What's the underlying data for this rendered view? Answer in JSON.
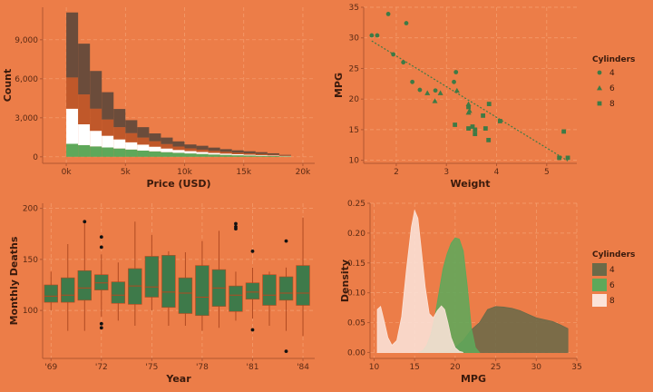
{
  "colors": {
    "background": "#ec7d48",
    "dark_brown": "#6b4c3b",
    "rust": "#c0582a",
    "white": "#ffffff",
    "green": "#5ea85a",
    "dark_green": "#3e7a45",
    "box_green": "#3e7a4a",
    "pink": "#fbe3d8",
    "olive": "#6b6a48"
  },
  "chart_data": [
    {
      "type": "bar",
      "subtype": "stacked-histogram",
      "xlabel": "Price (USD)",
      "ylabel": "Count",
      "x_ticks": [
        "0k",
        "5k",
        "10k",
        "15k",
        "20k"
      ],
      "x_tick_values": [
        0,
        5000,
        10000,
        15000,
        20000
      ],
      "y_ticks": [
        "0",
        "3,000",
        "6,000",
        "9,000"
      ],
      "y_tick_values": [
        0,
        3000,
        6000,
        9000
      ],
      "xlim": [
        -2000,
        21000
      ],
      "ylim": [
        -500,
        11500
      ],
      "bin_starts": [
        0,
        1000,
        2000,
        3000,
        4000,
        5000,
        6000,
        7000,
        8000,
        9000,
        10000,
        11000,
        12000,
        13000,
        14000,
        15000,
        16000,
        17000,
        18000
      ],
      "bin_width": 1000,
      "series": [
        {
          "color": "#5ea85a",
          "values": [
            1000,
            900,
            800,
            720,
            640,
            560,
            480,
            420,
            360,
            310,
            260,
            220,
            180,
            150,
            120,
            100,
            80,
            60,
            40
          ]
        },
        {
          "color": "#ffffff",
          "values": [
            2700,
            1600,
            1200,
            900,
            700,
            560,
            460,
            360,
            280,
            220,
            180,
            150,
            120,
            100,
            80,
            60,
            50,
            40,
            30
          ]
        },
        {
          "color": "#c0582a",
          "values": [
            2400,
            2300,
            1700,
            1250,
            940,
            700,
            540,
            420,
            340,
            260,
            210,
            180,
            160,
            140,
            120,
            110,
            90,
            60,
            30
          ]
        },
        {
          "color": "#6b4c3b",
          "values": [
            5000,
            3900,
            2900,
            2100,
            1400,
            1000,
            800,
            600,
            500,
            400,
            300,
            300,
            250,
            200,
            180,
            160,
            140,
            110,
            50
          ]
        }
      ]
    },
    {
      "type": "scatter",
      "xlabel": "Weight",
      "ylabel": "MPG",
      "x_ticks": [
        "2",
        "3",
        "4",
        "5"
      ],
      "x_tick_values": [
        2,
        3,
        4,
        5
      ],
      "y_ticks": [
        "10",
        "15",
        "20",
        "25",
        "30",
        "35"
      ],
      "y_tick_values": [
        10,
        15,
        20,
        25,
        30,
        35
      ],
      "xlim": [
        1.35,
        5.6
      ],
      "ylim": [
        9.5,
        35
      ],
      "legend_title": "Cylinders",
      "legend_position": "right",
      "series": [
        {
          "name": "4",
          "shape": "circle",
          "points": [
            [
              1.51,
              30.4
            ],
            [
              1.62,
              30.4
            ],
            [
              1.84,
              33.9
            ],
            [
              1.94,
              27.3
            ],
            [
              2.14,
              26.0
            ],
            [
              2.2,
              32.4
            ],
            [
              2.32,
              22.8
            ],
            [
              2.47,
              21.5
            ],
            [
              2.78,
              21.4
            ],
            [
              3.19,
              24.4
            ],
            [
              3.15,
              22.8
            ]
          ]
        },
        {
          "name": "6",
          "shape": "triangle",
          "points": [
            [
              2.62,
              21.0
            ],
            [
              2.88,
              21.0
            ],
            [
              2.77,
              19.7
            ],
            [
              3.21,
              21.4
            ],
            [
              3.46,
              18.1
            ],
            [
              3.44,
              19.2
            ],
            [
              3.44,
              17.8
            ]
          ]
        },
        {
          "name": "8",
          "shape": "square",
          "points": [
            [
              3.44,
              18.7
            ],
            [
              3.57,
              14.3
            ],
            [
              4.07,
              16.4
            ],
            [
              3.73,
              17.3
            ],
            [
              3.78,
              15.2
            ],
            [
              5.25,
              10.4
            ],
            [
              5.42,
              10.4
            ],
            [
              5.34,
              14.7
            ],
            [
              3.52,
              15.5
            ],
            [
              3.44,
              15.2
            ],
            [
              3.84,
              13.3
            ],
            [
              3.85,
              19.2
            ],
            [
              3.17,
              15.8
            ],
            [
              3.57,
              15.0
            ]
          ]
        }
      ],
      "trend": {
        "x": [
          1.51,
          5.42
        ],
        "y": [
          29.5,
          9.9
        ]
      }
    },
    {
      "type": "boxplot",
      "xlabel": "Year",
      "ylabel": "Monthly Deaths",
      "x_ticks": [
        "'69",
        "'72",
        "'75",
        "'78",
        "'81",
        "'84"
      ],
      "x_tick_values": [
        1969,
        1972,
        1975,
        1978,
        1981,
        1984
      ],
      "y_ticks": [
        "100",
        "150",
        "200"
      ],
      "y_tick_values": [
        100,
        150,
        200
      ],
      "xlim": [
        1968.5,
        1984.7
      ],
      "ylim": [
        53,
        205
      ],
      "boxes": [
        {
          "x": 1969,
          "q1": 108,
          "median": 114,
          "q3": 125,
          "low": 100,
          "high": 138
        },
        {
          "x": 1970,
          "q1": 108,
          "median": 115,
          "q3": 132,
          "low": 80,
          "high": 165
        },
        {
          "x": 1971,
          "q1": 110,
          "median": 122,
          "q3": 139,
          "low": 80,
          "high": 186
        },
        {
          "x": 1972,
          "q1": 120,
          "median": 127,
          "q3": 135,
          "low": 94,
          "high": 155
        },
        {
          "x": 1973,
          "q1": 107,
          "median": 115,
          "q3": 128,
          "low": 90,
          "high": 147
        },
        {
          "x": 1974,
          "q1": 106,
          "median": 124,
          "q3": 141,
          "low": 85,
          "high": 187
        },
        {
          "x": 1975,
          "q1": 113,
          "median": 123,
          "q3": 153,
          "low": 100,
          "high": 174
        },
        {
          "x": 1976,
          "q1": 103,
          "median": 118,
          "q3": 154,
          "low": 85,
          "high": 158
        },
        {
          "x": 1977,
          "q1": 97,
          "median": 117,
          "q3": 132,
          "low": 85,
          "high": 157
        },
        {
          "x": 1978,
          "q1": 95,
          "median": 113,
          "q3": 144,
          "low": 80,
          "high": 168
        },
        {
          "x": 1979,
          "q1": 104,
          "median": 122,
          "q3": 140,
          "low": 83,
          "high": 178
        },
        {
          "x": 1980,
          "q1": 99,
          "median": 115,
          "q3": 124,
          "low": 90,
          "high": 138
        },
        {
          "x": 1981,
          "q1": 111,
          "median": 118,
          "q3": 127,
          "low": 92,
          "high": 142
        },
        {
          "x": 1982,
          "q1": 105,
          "median": 115,
          "q3": 135,
          "low": 85,
          "high": 138
        },
        {
          "x": 1983,
          "q1": 110,
          "median": 117,
          "q3": 133,
          "low": 80,
          "high": 142
        },
        {
          "x": 1984,
          "q1": 105,
          "median": 117,
          "q3": 144,
          "low": 75,
          "high": 191
        }
      ],
      "outliers": [
        [
          1971,
          187
        ],
        [
          1972,
          172
        ],
        [
          1972,
          162
        ],
        [
          1972,
          87
        ],
        [
          1972,
          83
        ],
        [
          1980,
          185
        ],
        [
          1980,
          182
        ],
        [
          1980,
          180
        ],
        [
          1981,
          158
        ],
        [
          1981,
          81
        ],
        [
          1983,
          168
        ],
        [
          1983,
          60
        ]
      ]
    },
    {
      "type": "area",
      "subtype": "density",
      "xlabel": "MPG",
      "ylabel": "Density",
      "x_ticks": [
        "10",
        "15",
        "20",
        "25",
        "30",
        "35"
      ],
      "x_tick_values": [
        10,
        15,
        20,
        25,
        30,
        35
      ],
      "y_ticks": [
        "0.00",
        "0.05",
        "0.10",
        "0.15",
        "0.20",
        "0.25"
      ],
      "y_tick_values": [
        0,
        0.05,
        0.1,
        0.15,
        0.2,
        0.25
      ],
      "xlim": [
        9.5,
        35
      ],
      "ylim": [
        -0.01,
        0.25
      ],
      "legend_title": "Cylinders",
      "legend_position": "right",
      "series": [
        {
          "name": "4",
          "color": "#6b6a48",
          "x": [
            18,
            19,
            20,
            21,
            22,
            23,
            24,
            25,
            26,
            27,
            28,
            29,
            30,
            31,
            32,
            33,
            33.9
          ],
          "y": [
            0,
            0.002,
            0.008,
            0.02,
            0.038,
            0.05,
            0.072,
            0.077,
            0.076,
            0.074,
            0.07,
            0.064,
            0.058,
            0.055,
            0.052,
            0.046,
            0.04
          ]
        },
        {
          "name": "6",
          "color": "#5ea85a",
          "x": [
            15.5,
            16,
            16.5,
            17,
            17.5,
            18,
            18.5,
            19,
            19.5,
            20,
            20.5,
            21,
            21.5,
            22,
            22.5,
            23
          ],
          "y": [
            0,
            0.003,
            0.012,
            0.03,
            0.06,
            0.1,
            0.14,
            0.165,
            0.183,
            0.192,
            0.19,
            0.17,
            0.11,
            0.04,
            0.008,
            0
          ]
        },
        {
          "name": "8",
          "color": "#fbe3d8",
          "x": [
            10.4,
            10.8,
            11.2,
            11.7,
            12.2,
            12.8,
            13.4,
            14,
            14.6,
            15,
            15.4,
            15.8,
            16.3,
            16.8,
            17.3,
            17.8,
            18.3,
            18.7,
            19.1,
            19.5,
            20,
            20.5,
            21
          ],
          "y": [
            0.072,
            0.077,
            0.055,
            0.025,
            0.012,
            0.02,
            0.06,
            0.14,
            0.21,
            0.238,
            0.225,
            0.175,
            0.11,
            0.065,
            0.058,
            0.07,
            0.078,
            0.072,
            0.05,
            0.025,
            0.008,
            0.002,
            0
          ]
        }
      ]
    }
  ]
}
